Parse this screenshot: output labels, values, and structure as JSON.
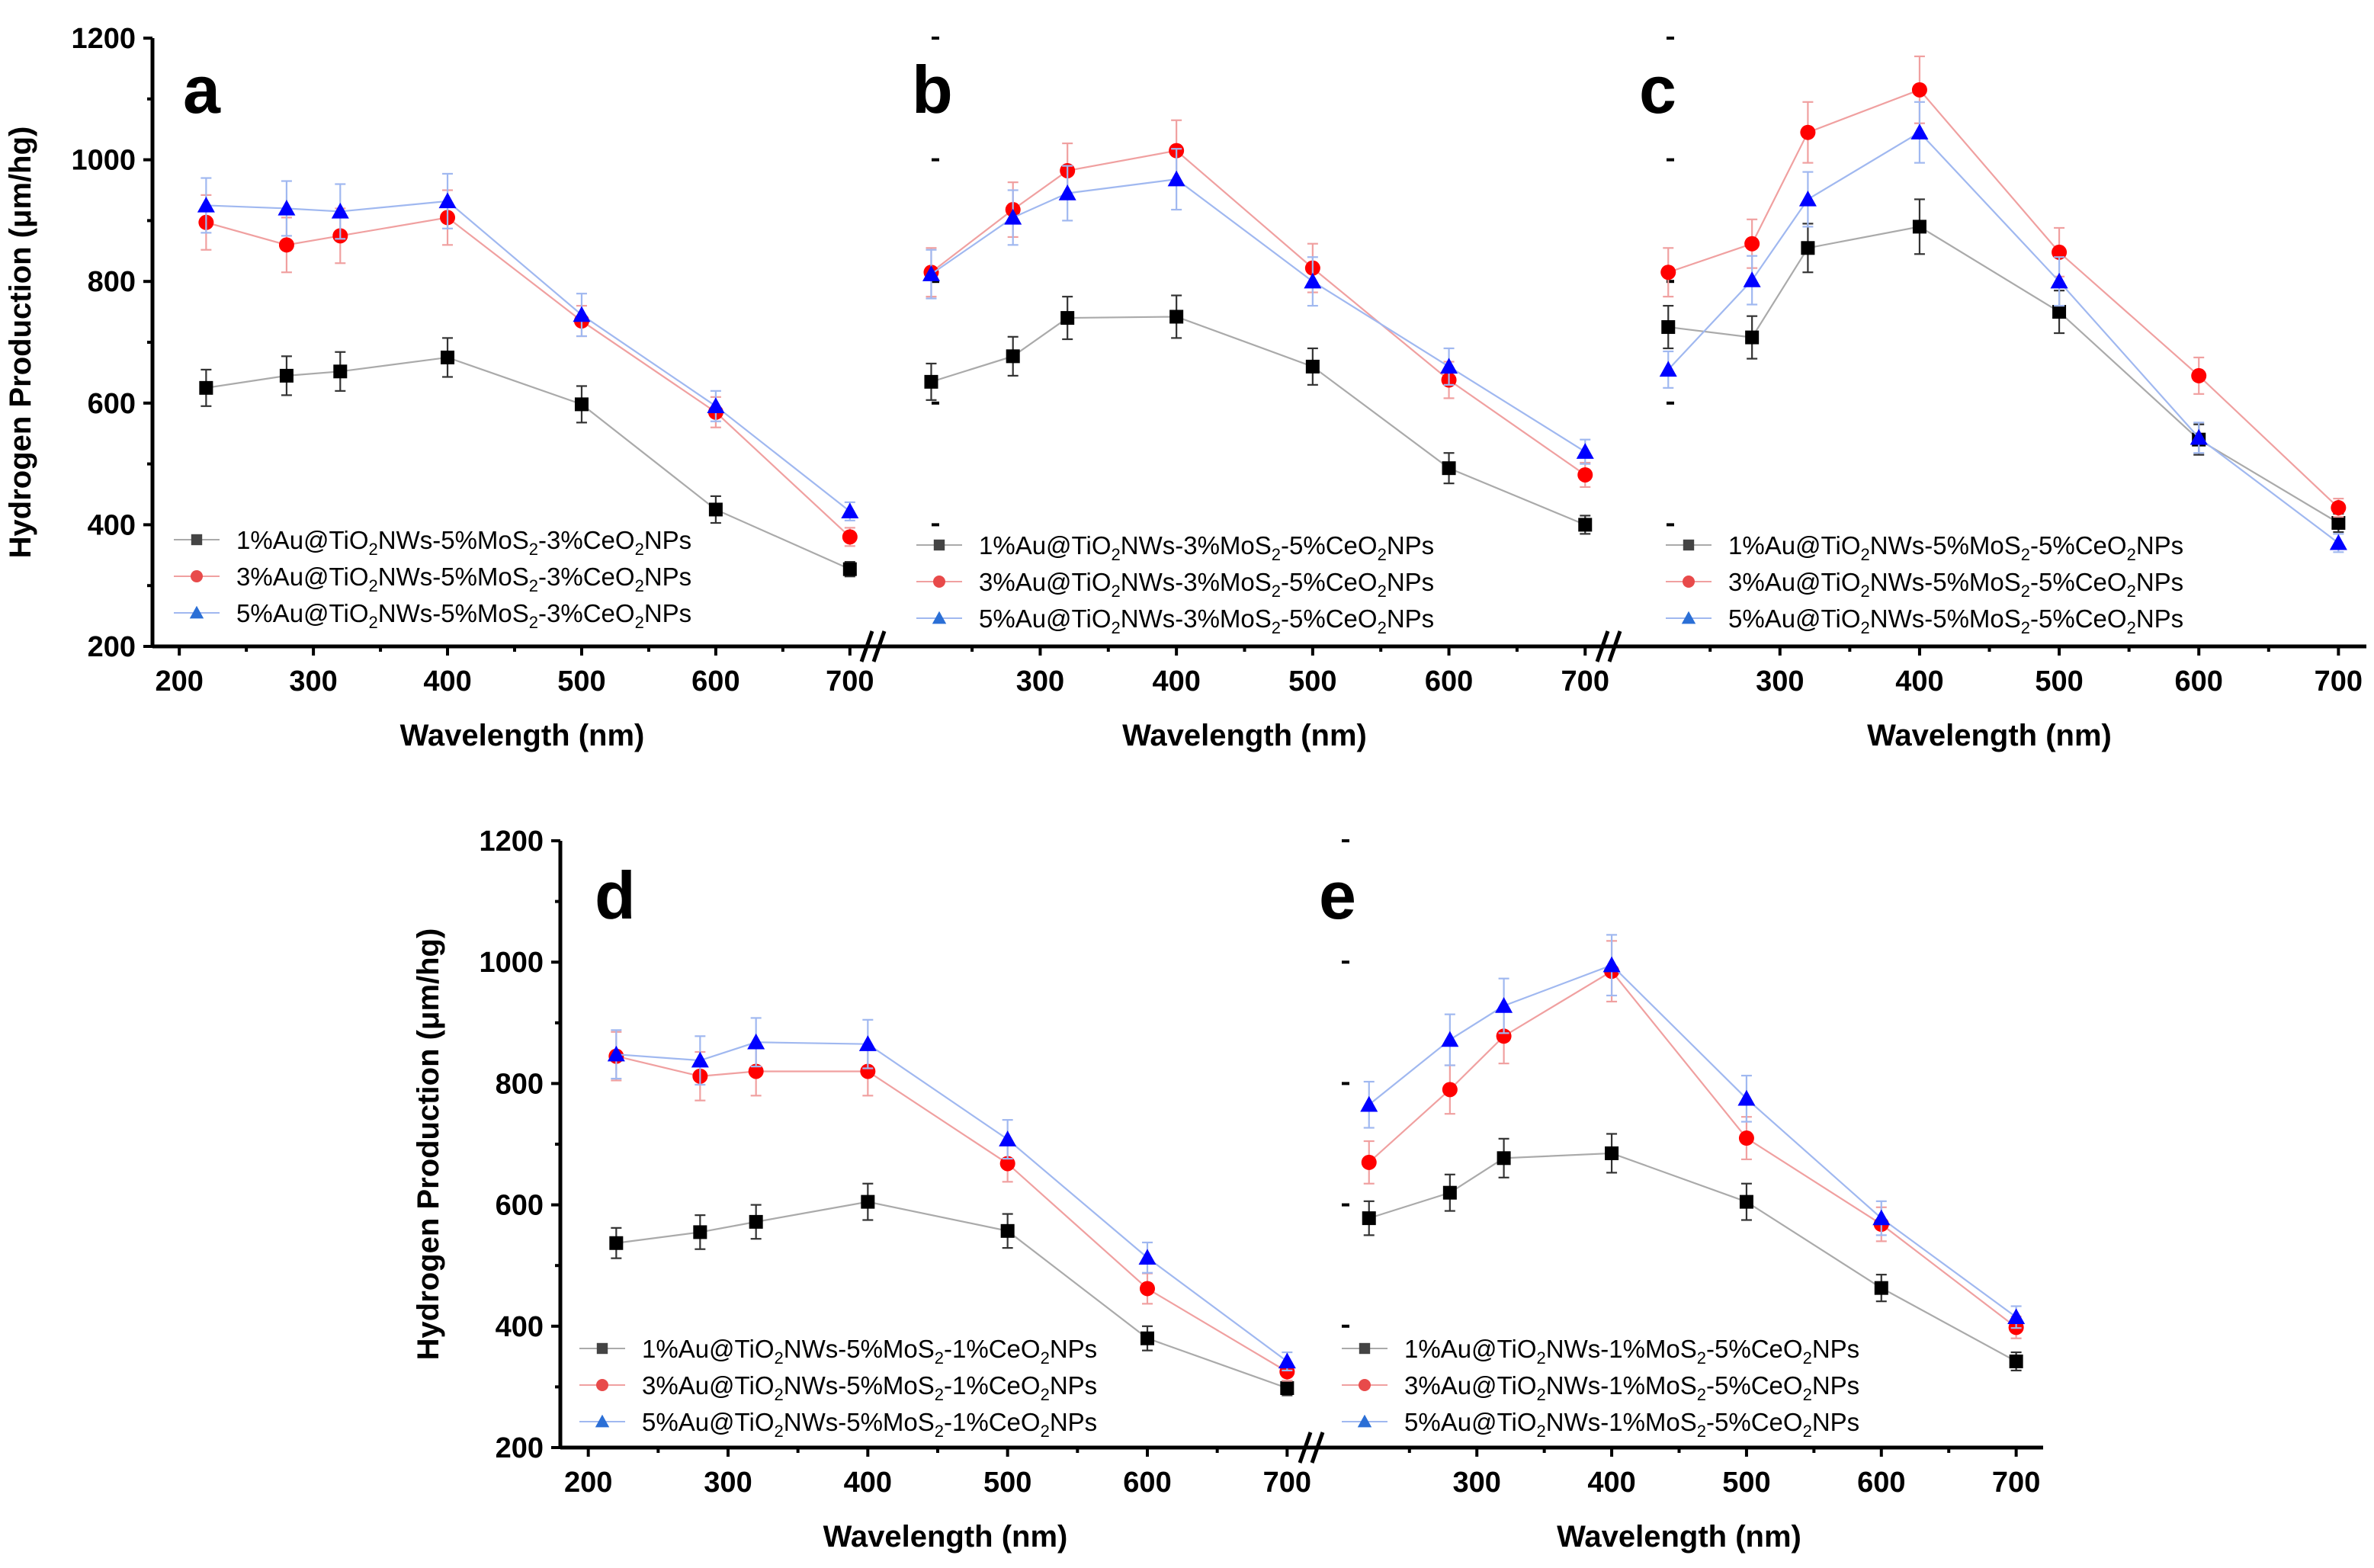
{
  "chart_data": [
    {
      "id": "a",
      "type": "line",
      "panel_label": "a",
      "xlabel": "Wavelength (nm)",
      "ylabel": "Hydrogen Production (μm/hg)",
      "ylim": [
        200,
        1200
      ],
      "yticks": [
        200,
        400,
        600,
        800,
        1000,
        1200
      ],
      "xlim": [
        180,
        720
      ],
      "xticks": [
        200,
        300,
        400,
        500,
        600,
        700
      ],
      "series": [
        {
          "label_parts": [
            "1%Au@TiO",
            "2",
            "NWs-5%MoS",
            "2",
            "-3%CeO",
            "2",
            "NPs"
          ],
          "marker": "square",
          "color": "#000000",
          "line_color": "#aaaaaa",
          "legend_color": "#444444",
          "x": [
            220,
            280,
            320,
            400,
            500,
            600,
            700
          ],
          "y": [
            625,
            645,
            652,
            675,
            598,
            425,
            327
          ],
          "err": [
            30,
            32,
            32,
            32,
            30,
            22,
            12
          ]
        },
        {
          "label_parts": [
            "3%Au@TiO",
            "2",
            "NWs-5%MoS",
            "2",
            "-3%CeO",
            "2",
            "NPs"
          ],
          "marker": "circle",
          "color": "#ff0000",
          "line_color": "#f0a0a0",
          "legend_color": "#e84a4a",
          "x": [
            220,
            280,
            320,
            400,
            500,
            600,
            700
          ],
          "y": [
            897,
            860,
            875,
            905,
            735,
            585,
            380
          ],
          "err": [
            45,
            45,
            45,
            45,
            25,
            25,
            15
          ]
        },
        {
          "label_parts": [
            "5%Au@TiO",
            "2",
            "NWs-5%MoS",
            "2",
            "-3%CeO",
            "2",
            "NPs"
          ],
          "marker": "triangle",
          "color": "#0000ff",
          "line_color": "#a0b8f0",
          "legend_color": "#2b6fd6",
          "x": [
            220,
            280,
            320,
            400,
            500,
            600,
            700
          ],
          "y": [
            925,
            920,
            915,
            932,
            745,
            595,
            422
          ],
          "err": [
            45,
            45,
            45,
            45,
            35,
            25,
            15
          ]
        }
      ]
    },
    {
      "id": "b",
      "type": "line",
      "panel_label": "b",
      "xlabel": "Wavelength (nm)",
      "ylim": [
        200,
        1200
      ],
      "xlim": [
        180,
        720
      ],
      "xticks": [
        300,
        400,
        500,
        600,
        700
      ],
      "series": [
        {
          "label_parts": [
            "1%Au@TiO",
            "2",
            "NWs-3%MoS",
            "2",
            "-5%CeO",
            "2",
            "NPs"
          ],
          "marker": "square",
          "color": "#000000",
          "line_color": "#aaaaaa",
          "legend_color": "#444444",
          "x": [
            220,
            280,
            320,
            400,
            500,
            600,
            700
          ],
          "y": [
            635,
            677,
            740,
            742,
            660,
            493,
            400
          ],
          "err": [
            30,
            32,
            35,
            35,
            30,
            25,
            15
          ]
        },
        {
          "label_parts": [
            "3%Au@TiO",
            "2",
            "NWs-3%MoS",
            "2",
            "-5%CeO",
            "2",
            "NPs"
          ],
          "marker": "circle",
          "color": "#ff0000",
          "line_color": "#f0a0a0",
          "legend_color": "#e84a4a",
          "x": [
            220,
            280,
            320,
            400,
            500,
            600,
            700
          ],
          "y": [
            815,
            918,
            982,
            1015,
            822,
            638,
            482
          ],
          "err": [
            40,
            45,
            45,
            50,
            40,
            30,
            20
          ]
        },
        {
          "label_parts": [
            "5%Au@TiO",
            "2",
            "NWs-3%MoS",
            "2",
            "-5%CeO",
            "2",
            "NPs"
          ],
          "marker": "triangle",
          "color": "#0000ff",
          "line_color": "#a0b8f0",
          "legend_color": "#2b6fd6",
          "x": [
            220,
            280,
            320,
            400,
            500,
            600,
            700
          ],
          "y": [
            812,
            905,
            945,
            968,
            800,
            660,
            520
          ],
          "err": [
            40,
            45,
            45,
            50,
            40,
            30,
            20
          ]
        }
      ]
    },
    {
      "id": "c",
      "type": "line",
      "panel_label": "c",
      "xlabel": "Wavelength (nm)",
      "ylim": [
        200,
        1200
      ],
      "xlim": [
        180,
        720
      ],
      "xticks": [
        300,
        400,
        500,
        600,
        700
      ],
      "series": [
        {
          "label_parts": [
            "1%Au@TiO",
            "2",
            "NWs-5%MoS",
            "2",
            "-5%CeO",
            "2",
            "NPs"
          ],
          "marker": "square",
          "color": "#000000",
          "line_color": "#aaaaaa",
          "legend_color": "#444444",
          "x": [
            220,
            280,
            320,
            400,
            500,
            600,
            700
          ],
          "y": [
            725,
            708,
            855,
            890,
            750,
            540,
            403
          ],
          "err": [
            35,
            35,
            40,
            45,
            35,
            25,
            15
          ]
        },
        {
          "label_parts": [
            "3%Au@TiO",
            "2",
            "NWs-5%MoS",
            "2",
            "-5%CeO",
            "2",
            "NPs"
          ],
          "marker": "circle",
          "color": "#ff0000",
          "line_color": "#f0a0a0",
          "legend_color": "#e84a4a",
          "x": [
            220,
            280,
            320,
            400,
            500,
            600,
            700
          ],
          "y": [
            815,
            862,
            1045,
            1115,
            848,
            645,
            428
          ],
          "err": [
            40,
            40,
            50,
            55,
            40,
            30,
            15
          ]
        },
        {
          "label_parts": [
            "5%Au@TiO",
            "2",
            "NWs-5%MoS",
            "2",
            "-5%CeO",
            "2",
            "NPs"
          ],
          "marker": "triangle",
          "color": "#0000ff",
          "line_color": "#a0b8f0",
          "legend_color": "#2b6fd6",
          "x": [
            220,
            280,
            320,
            400,
            500,
            600,
            700
          ],
          "y": [
            655,
            802,
            935,
            1045,
            800,
            543,
            370
          ],
          "err": [
            30,
            40,
            45,
            50,
            40,
            25,
            15
          ]
        }
      ]
    },
    {
      "id": "d",
      "type": "line",
      "panel_label": "d",
      "xlabel": "Wavelength (nm)",
      "ylabel": "Hydrogen Production (μm/hg)",
      "ylim": [
        200,
        1200
      ],
      "yticks": [
        200,
        400,
        600,
        800,
        1000,
        1200
      ],
      "xlim": [
        180,
        720
      ],
      "xticks": [
        200,
        300,
        400,
        500,
        600,
        700
      ],
      "series": [
        {
          "label_parts": [
            "1%Au@TiO",
            "2",
            "NWs-5%MoS",
            "2",
            "-1%CeO",
            "2",
            "NPs"
          ],
          "marker": "square",
          "color": "#000000",
          "line_color": "#aaaaaa",
          "legend_color": "#444444",
          "x": [
            220,
            280,
            320,
            400,
            500,
            600,
            700
          ],
          "y": [
            537,
            555,
            572,
            605,
            557,
            380,
            298
          ],
          "err": [
            25,
            28,
            28,
            30,
            28,
            20,
            12
          ]
        },
        {
          "label_parts": [
            "3%Au@TiO",
            "2",
            "NWs-5%MoS",
            "2",
            "-1%CeO",
            "2",
            "NPs"
          ],
          "marker": "circle",
          "color": "#ff0000",
          "line_color": "#f0a0a0",
          "legend_color": "#e84a4a",
          "x": [
            220,
            280,
            320,
            400,
            500,
            600,
            700
          ],
          "y": [
            845,
            812,
            820,
            820,
            668,
            462,
            325
          ],
          "err": [
            40,
            40,
            40,
            40,
            30,
            25,
            15
          ]
        },
        {
          "label_parts": [
            "5%Au@TiO",
            "2",
            "NWs-5%MoS",
            "2",
            "-1%CeO",
            "2",
            "NPs"
          ],
          "marker": "triangle",
          "color": "#0000ff",
          "line_color": "#a0b8f0",
          "legend_color": "#2b6fd6",
          "x": [
            220,
            280,
            320,
            400,
            500,
            600,
            700
          ],
          "y": [
            848,
            838,
            868,
            865,
            708,
            513,
            342
          ],
          "err": [
            40,
            40,
            40,
            40,
            32,
            25,
            15
          ]
        }
      ]
    },
    {
      "id": "e",
      "type": "line",
      "panel_label": "e",
      "xlabel": "Wavelength (nm)",
      "ylim": [
        200,
        1200
      ],
      "xlim": [
        180,
        720
      ],
      "xticks": [
        300,
        400,
        500,
        600,
        700
      ],
      "series": [
        {
          "label_parts": [
            "1%Au@TiO",
            "2",
            "NWs-1%MoS",
            "2",
            "-5%CeO",
            "2",
            "NPs"
          ],
          "marker": "square",
          "color": "#000000",
          "line_color": "#aaaaaa",
          "legend_color": "#444444",
          "x": [
            220,
            280,
            320,
            400,
            500,
            600,
            700
          ],
          "y": [
            578,
            620,
            677,
            685,
            605,
            463,
            342
          ],
          "err": [
            28,
            30,
            32,
            32,
            30,
            22,
            15
          ]
        },
        {
          "label_parts": [
            "3%Au@TiO",
            "2",
            "NWs-1%MoS",
            "2",
            "-5%CeO",
            "2",
            "NPs"
          ],
          "marker": "circle",
          "color": "#ff0000",
          "line_color": "#f0a0a0",
          "legend_color": "#e84a4a",
          "x": [
            220,
            280,
            320,
            400,
            500,
            600,
            700
          ],
          "y": [
            670,
            790,
            878,
            985,
            710,
            568,
            398
          ],
          "err": [
            35,
            40,
            45,
            50,
            35,
            28,
            18
          ]
        },
        {
          "label_parts": [
            "5%Au@TiO",
            "2",
            "NWs-1%MoS",
            "2",
            "-5%CeO",
            "2",
            "NPs"
          ],
          "marker": "triangle",
          "color": "#0000ff",
          "line_color": "#a0b8f0",
          "legend_color": "#2b6fd6",
          "x": [
            220,
            280,
            320,
            400,
            500,
            600,
            700
          ],
          "y": [
            765,
            872,
            928,
            995,
            775,
            578,
            415
          ],
          "err": [
            38,
            42,
            45,
            50,
            38,
            28,
            18
          ]
        }
      ]
    }
  ]
}
